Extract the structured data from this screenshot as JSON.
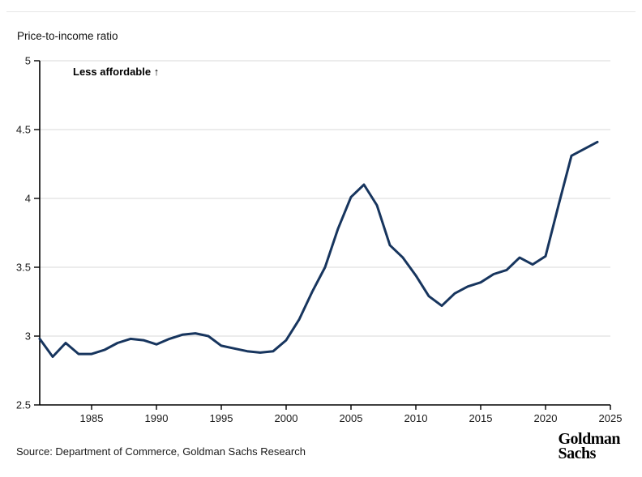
{
  "page": {
    "title": "Price-to-income ratio",
    "annotation": "Less affordable ↑",
    "source": "Source: Department of Commerce, Goldman Sachs Research",
    "logo_line1": "Goldman",
    "logo_line2": "Sachs"
  },
  "colors": {
    "line": "#17355e",
    "grid": "#d9d9d9",
    "axis": "#000000",
    "tick_text": "#1a1a1a",
    "divider": "#e7e7e7"
  },
  "chart_data": {
    "type": "line",
    "title": "Price-to-income ratio",
    "ylabel": "Price-to-income ratio",
    "xlabel": "",
    "annotation": "Less affordable ↑",
    "legend": "none",
    "grid": "horizontal",
    "xlim": [
      1981,
      2025
    ],
    "ylim": [
      2.5,
      5
    ],
    "x_ticks": [
      1985,
      1990,
      1995,
      2000,
      2005,
      2010,
      2015,
      2020,
      2025
    ],
    "y_ticks": [
      2.5,
      3,
      3.5,
      4,
      4.5,
      5
    ],
    "x": [
      1981,
      1982,
      1983,
      1984,
      1985,
      1986,
      1987,
      1988,
      1989,
      1990,
      1991,
      1992,
      1993,
      1994,
      1995,
      1996,
      1997,
      1998,
      1999,
      2000,
      2001,
      2002,
      2003,
      2004,
      2005,
      2006,
      2007,
      2008,
      2009,
      2010,
      2011,
      2012,
      2013,
      2014,
      2015,
      2016,
      2017,
      2018,
      2019,
      2020,
      2021,
      2022,
      2023,
      2024
    ],
    "values": [
      2.98,
      2.85,
      2.95,
      2.87,
      2.87,
      2.9,
      2.95,
      2.98,
      2.97,
      2.94,
      2.98,
      3.01,
      3.02,
      3.0,
      2.93,
      2.91,
      2.89,
      2.88,
      2.89,
      2.97,
      3.12,
      3.32,
      3.5,
      3.78,
      4.01,
      4.1,
      3.95,
      3.66,
      3.57,
      3.44,
      3.29,
      3.22,
      3.31,
      3.36,
      3.39,
      3.45,
      3.48,
      3.57,
      3.52,
      3.58,
      3.95,
      4.31,
      4.36,
      4.41
    ]
  }
}
